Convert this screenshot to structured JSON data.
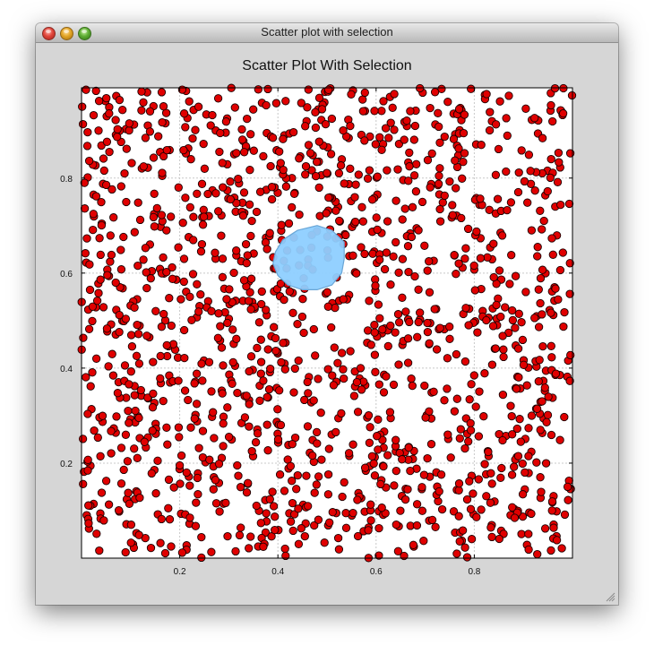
{
  "window": {
    "title": "Scatter plot with selection"
  },
  "colors": {
    "point_fill": "#e00000",
    "point_stroke": "#1a0000",
    "selection_fill": "#8ecfff",
    "selection_stroke": "#6aa6d6",
    "grid": "#c8c8c8",
    "window_bg": "#d6d6d6",
    "plot_bg": "#ffffff"
  },
  "chart_data": {
    "type": "scatter",
    "title": "Scatter Plot With Selection",
    "xlabel": "",
    "ylabel": "",
    "xlim": [
      0.0,
      1.0
    ],
    "ylim": [
      0.0,
      0.99
    ],
    "xticks": [
      "0.2",
      "0.4",
      "0.6",
      "0.8"
    ],
    "xtick_values": [
      0.2,
      0.4,
      0.6,
      0.8
    ],
    "yticks": [
      "0.2",
      "0.4",
      "0.6",
      "0.8"
    ],
    "ytick_values": [
      0.2,
      0.4,
      0.6,
      0.8
    ],
    "grid": true,
    "point_count": 1500,
    "distribution": "uniform random over [0,1] x [0,1]",
    "selection": {
      "shape": "lasso polygon",
      "center": [
        0.46,
        0.62
      ],
      "vertices": [
        [
          0.44,
          0.69
        ],
        [
          0.48,
          0.7
        ],
        [
          0.51,
          0.69
        ],
        [
          0.535,
          0.665
        ],
        [
          0.535,
          0.63
        ],
        [
          0.53,
          0.6
        ],
        [
          0.51,
          0.575
        ],
        [
          0.48,
          0.565
        ],
        [
          0.45,
          0.565
        ],
        [
          0.42,
          0.575
        ],
        [
          0.4,
          0.595
        ],
        [
          0.39,
          0.62
        ],
        [
          0.395,
          0.645
        ],
        [
          0.41,
          0.67
        ]
      ]
    }
  }
}
